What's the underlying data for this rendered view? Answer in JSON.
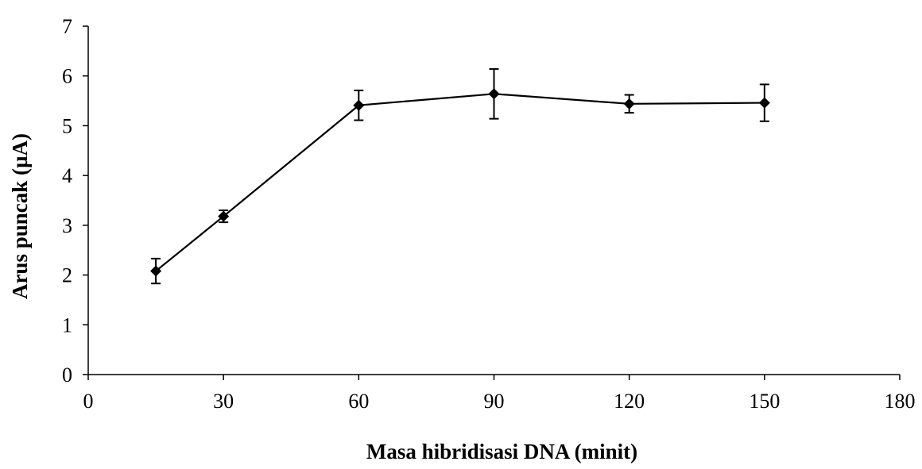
{
  "chart_data": {
    "type": "line",
    "title": "",
    "xlabel": "Masa hibridisasi DNA (minit)",
    "ylabel": "Arus puncak (µA)",
    "xlim": [
      0,
      180
    ],
    "ylim": [
      0,
      7
    ],
    "x_ticks": [
      "0",
      "30",
      "60",
      "90",
      "120",
      "150",
      "180"
    ],
    "y_ticks": [
      "0",
      "1",
      "2",
      "3",
      "4",
      "5",
      "6",
      "7"
    ],
    "grid": false,
    "legend": "none",
    "marker": "diamond",
    "color": "#000000",
    "series": [
      {
        "x": [
          15,
          30,
          60,
          90,
          120,
          150
        ],
        "y": [
          2.08,
          3.18,
          5.41,
          5.64,
          5.44,
          5.46
        ],
        "error": [
          0.25,
          0.12,
          0.3,
          0.5,
          0.18,
          0.37
        ]
      }
    ]
  }
}
